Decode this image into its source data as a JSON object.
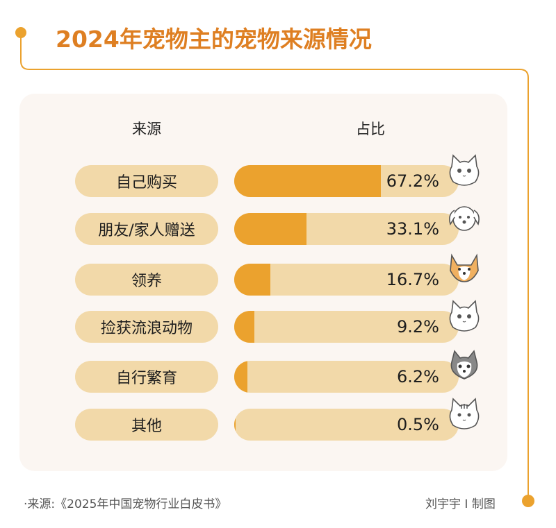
{
  "title": "2024年宠物主的宠物来源情况",
  "colors": {
    "accent": "#eba22e",
    "track": "#f2d9a9",
    "title": "#de7f22",
    "panel": "#fbf6f2"
  },
  "chart_data": {
    "type": "bar",
    "orientation": "horizontal",
    "title": "2024年宠物主的宠物来源情况",
    "column_headers": [
      "来源",
      "占比"
    ],
    "categories": [
      "自己购买",
      "朋友/家人赠送",
      "领养",
      "捡获流浪动物",
      "自行繁育",
      "其他"
    ],
    "values": [
      67.2,
      33.1,
      16.7,
      9.2,
      6.2,
      0.5
    ],
    "value_labels": [
      "67.2%",
      "33.1%",
      "16.7%",
      "9.2%",
      "6.2%",
      "0.5%"
    ],
    "unit": "%",
    "xlim": [
      0,
      100
    ],
    "grid": false,
    "icons": [
      "cat-icon",
      "dog-icon",
      "corgi-icon",
      "cat-icon",
      "husky-icon",
      "tabby-cat-icon"
    ]
  },
  "footer": {
    "source": "·来源:《2025年中国宠物行业白皮书》",
    "credit": "刘宇宇 I 制图"
  }
}
